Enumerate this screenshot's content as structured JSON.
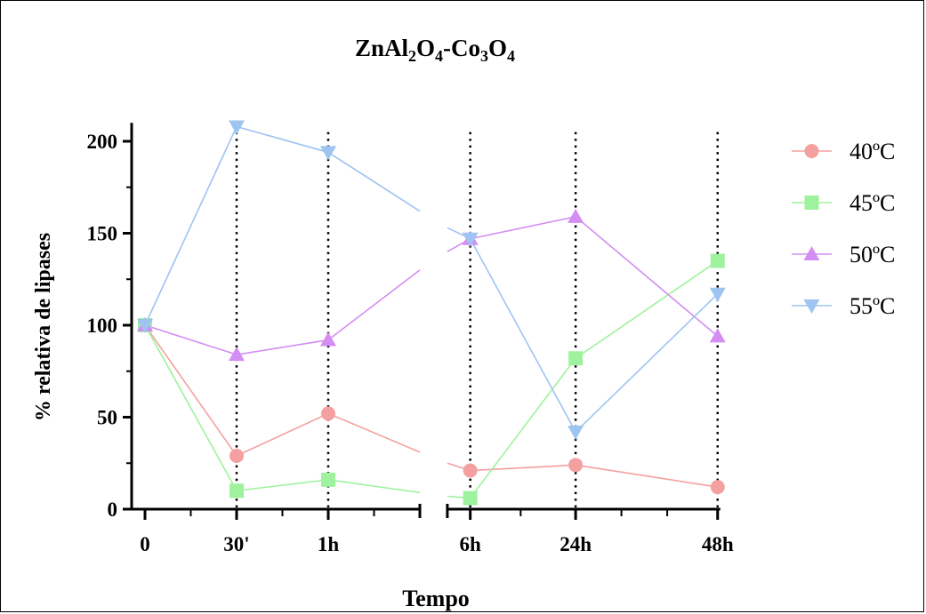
{
  "chart_data": {
    "type": "line",
    "title_base": "ZnAl",
    "title_sub1": "2",
    "title_mid1": "O",
    "title_sub2": "4",
    "title_mid2": "-Co",
    "title_sub3": "3",
    "title_mid3": "O",
    "title_sub4": "4",
    "xlabel": "Tempo",
    "ylabel": "% relativa de lipases",
    "ylim": [
      0,
      210
    ],
    "yticks": [
      0,
      50,
      100,
      150,
      200
    ],
    "x_ticks": [
      "0",
      "30'",
      "1h",
      "6h",
      "24h",
      "48h"
    ],
    "x_positions": [
      0,
      1,
      2,
      3.55,
      4.7,
      6.25
    ],
    "dotted_at": [
      1,
      2,
      3.55,
      4.7,
      6.25
    ],
    "break_left": 3.0,
    "break_right": 3.3,
    "legend_position": "right",
    "series": [
      {
        "name": "40ºC",
        "color": "#f4a0a0",
        "marker": "circle",
        "values": [
          100,
          29,
          52,
          21,
          24,
          12
        ],
        "break_to": 31,
        "break_from": 25
      },
      {
        "name": "45ºC",
        "color": "#9ef29e",
        "marker": "square",
        "values": [
          100,
          10,
          16,
          6,
          82,
          135
        ],
        "break_to": 9,
        "break_from": 7
      },
      {
        "name": "50ºC",
        "color": "#d48df2",
        "marker": "triangle-up",
        "values": [
          100,
          84,
          92,
          147,
          159,
          94
        ],
        "break_to": 130,
        "break_from": 140
      },
      {
        "name": "55ºC",
        "color": "#9ec4f2",
        "marker": "triangle-down",
        "values": [
          100,
          208,
          194,
          147,
          42,
          117
        ],
        "break_to": 162,
        "break_from": 153
      }
    ]
  }
}
